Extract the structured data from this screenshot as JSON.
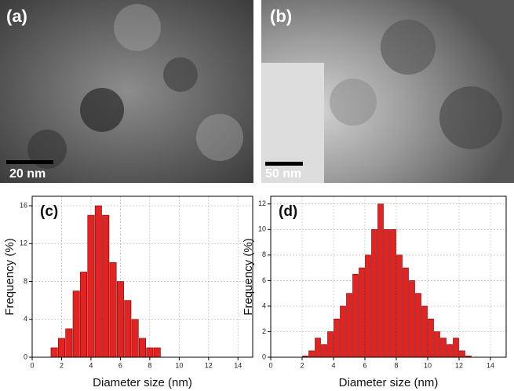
{
  "images": [
    {
      "label": "(a)",
      "scale_bar": "20 nm"
    },
    {
      "label": "(b)",
      "scale_bar": "50 nm"
    }
  ],
  "chart_data": [
    {
      "type": "histogram",
      "panel_label": "(c)",
      "x_label": "Diameter size (nm)",
      "y_label": "Frequency (%)",
      "bins": [
        1.25,
        1.75,
        2.25,
        2.75,
        3.25,
        3.75,
        4.25,
        4.75,
        5.25,
        5.75,
        6.25,
        6.75,
        7.25,
        7.75,
        8.25,
        8.75
      ],
      "values": [
        1,
        2,
        3,
        7,
        9,
        15,
        16,
        15,
        10,
        8,
        6,
        4,
        2,
        1,
        1
      ],
      "color": "#e32222",
      "xlim": [
        0,
        15
      ],
      "xticks": [
        0,
        2,
        4,
        6,
        8,
        10,
        12,
        14
      ],
      "ylim": [
        0,
        17
      ],
      "yticks": [
        0,
        4,
        8,
        12,
        16
      ],
      "grid": true
    },
    {
      "type": "histogram",
      "panel_label": "(d)",
      "x_label": "Diameter size (nm)",
      "y_label": "Frequency (%)",
      "bins": [
        2.0,
        2.4,
        2.8,
        3.2,
        3.6,
        4.0,
        4.4,
        4.8,
        5.2,
        5.6,
        6.0,
        6.4,
        6.8,
        7.2,
        7.6,
        8.0,
        8.4,
        8.8,
        9.2,
        9.6,
        10.0,
        10.4,
        10.8,
        11.2,
        11.6,
        12.0,
        12.4,
        12.8
      ],
      "values": [
        0.1,
        0.5,
        1.5,
        1,
        2,
        3,
        4,
        5,
        6.5,
        7,
        8,
        10,
        12,
        10,
        10,
        8,
        7,
        6,
        5,
        4,
        3,
        2,
        1.5,
        1,
        1.5,
        0.5,
        0.1
      ],
      "color": "#e32222",
      "xlim": [
        0,
        15
      ],
      "xticks": [
        0,
        2,
        4,
        6,
        8,
        10,
        12,
        14
      ],
      "ylim": [
        0,
        12.6
      ],
      "yticks": [
        0,
        2,
        4,
        6,
        8,
        10,
        12
      ],
      "grid": true
    }
  ]
}
